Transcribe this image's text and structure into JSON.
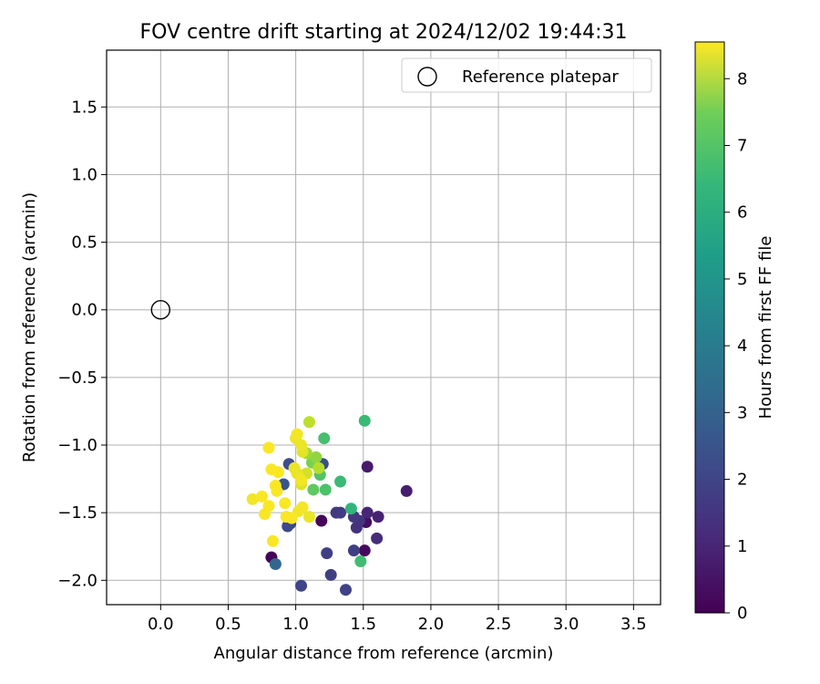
{
  "chart_data": {
    "type": "scatter",
    "title": "FOV centre drift starting at 2024/12/02 19:44:31",
    "xlabel": "Angular distance from reference (arcmin)",
    "ylabel": "Rotation from reference (arcmin)",
    "xlim": [
      -0.4,
      3.7
    ],
    "ylim": [
      -2.18,
      1.92
    ],
    "xticks": [
      0.0,
      0.5,
      1.0,
      1.5,
      2.0,
      2.5,
      3.0,
      3.5
    ],
    "xtick_labels": [
      "0.0",
      "0.5",
      "1.0",
      "1.5",
      "2.0",
      "2.5",
      "3.0",
      "3.5"
    ],
    "yticks": [
      1.5,
      1.0,
      0.5,
      0.0,
      -0.5,
      -1.0,
      -1.5,
      -2.0
    ],
    "ytick_labels": [
      "1.5",
      "1.0",
      "0.5",
      "0.0",
      "−0.5",
      "−1.0",
      "−1.5",
      "−2.0"
    ],
    "grid": true,
    "legend": {
      "placement": "top-right",
      "entries": [
        "Reference platepar"
      ]
    },
    "reference_point": {
      "x": 0.0,
      "y": 0.0
    },
    "colorbar": {
      "label": "Hours from first FF file",
      "min": 0,
      "max": 8.55,
      "colormap": "viridis",
      "ticks": [
        0,
        1,
        2,
        3,
        4,
        5,
        6,
        7,
        8
      ],
      "tick_labels": [
        "0",
        "1",
        "2",
        "3",
        "4",
        "5",
        "6",
        "7",
        "8"
      ]
    },
    "series": [
      {
        "points": [
          {
            "x": 0.82,
            "y": -1.83,
            "h": 0.1
          },
          {
            "x": 1.19,
            "y": -1.56,
            "h": 0.1
          },
          {
            "x": 1.51,
            "y": -1.78,
            "h": 0.2
          },
          {
            "x": 1.52,
            "y": -1.57,
            "h": 0.3
          },
          {
            "x": 1.53,
            "y": -1.16,
            "h": 0.6
          },
          {
            "x": 1.82,
            "y": -1.34,
            "h": 0.7
          },
          {
            "x": 1.61,
            "y": -1.53,
            "h": 0.8
          },
          {
            "x": 1.53,
            "y": -1.5,
            "h": 0.9
          },
          {
            "x": 1.6,
            "y": -1.69,
            "h": 1.1
          },
          {
            "x": 1.45,
            "y": -1.61,
            "h": 1.2
          },
          {
            "x": 1.47,
            "y": -1.56,
            "h": 1.3
          },
          {
            "x": 1.43,
            "y": -1.53,
            "h": 1.4
          },
          {
            "x": 1.3,
            "y": -1.5,
            "h": 1.4
          },
          {
            "x": 1.33,
            "y": -1.5,
            "h": 1.5
          },
          {
            "x": 1.43,
            "y": -1.78,
            "h": 1.6
          },
          {
            "x": 1.23,
            "y": -1.8,
            "h": 1.6
          },
          {
            "x": 1.26,
            "y": -1.96,
            "h": 1.6
          },
          {
            "x": 1.37,
            "y": -2.07,
            "h": 1.7
          },
          {
            "x": 1.04,
            "y": -2.04,
            "h": 1.8
          },
          {
            "x": 0.96,
            "y": -1.58,
            "h": 1.8
          },
          {
            "x": 0.94,
            "y": -1.6,
            "h": 1.9
          },
          {
            "x": 0.95,
            "y": -1.14,
            "h": 2.0
          },
          {
            "x": 1.2,
            "y": -1.14,
            "h": 2.1
          },
          {
            "x": 0.91,
            "y": -1.29,
            "h": 2.3
          },
          {
            "x": 0.85,
            "y": -1.88,
            "h": 2.8
          },
          {
            "x": 1.41,
            "y": -1.47,
            "h": 5.6
          },
          {
            "x": 1.33,
            "y": -1.27,
            "h": 5.8
          },
          {
            "x": 1.51,
            "y": -0.82,
            "h": 5.8
          },
          {
            "x": 1.48,
            "y": -1.86,
            "h": 5.9
          },
          {
            "x": 1.21,
            "y": -0.95,
            "h": 6.0
          },
          {
            "x": 1.22,
            "y": -1.33,
            "h": 6.1
          },
          {
            "x": 1.18,
            "y": -1.22,
            "h": 6.2
          },
          {
            "x": 1.13,
            "y": -1.33,
            "h": 6.4
          },
          {
            "x": 1.12,
            "y": -1.13,
            "h": 6.8
          },
          {
            "x": 1.15,
            "y": -1.09,
            "h": 7.1
          },
          {
            "x": 1.08,
            "y": -1.06,
            "h": 7.3
          },
          {
            "x": 1.1,
            "y": -0.83,
            "h": 7.7
          },
          {
            "x": 1.17,
            "y": -1.17,
            "h": 7.6
          },
          {
            "x": 1.08,
            "y": -1.21,
            "h": 8.0
          },
          {
            "x": 1.04,
            "y": -1.29,
            "h": 8.1
          },
          {
            "x": 0.82,
            "y": -1.18,
            "h": 8.5
          },
          {
            "x": 0.87,
            "y": -1.2,
            "h": 8.5
          },
          {
            "x": 0.8,
            "y": -1.02,
            "h": 8.5
          },
          {
            "x": 1.01,
            "y": -0.92,
            "h": 8.4
          },
          {
            "x": 1.0,
            "y": -0.95,
            "h": 8.3
          },
          {
            "x": 1.04,
            "y": -1.0,
            "h": 8.3
          },
          {
            "x": 1.05,
            "y": -1.05,
            "h": 8.2
          },
          {
            "x": 0.99,
            "y": -1.17,
            "h": 8.3
          },
          {
            "x": 1.01,
            "y": -1.21,
            "h": 8.3
          },
          {
            "x": 1.04,
            "y": -1.26,
            "h": 8.4
          },
          {
            "x": 0.85,
            "y": -1.3,
            "h": 8.5
          },
          {
            "x": 0.86,
            "y": -1.34,
            "h": 8.5
          },
          {
            "x": 0.68,
            "y": -1.4,
            "h": 8.4
          },
          {
            "x": 0.75,
            "y": -1.38,
            "h": 8.5
          },
          {
            "x": 0.8,
            "y": -1.45,
            "h": 8.5
          },
          {
            "x": 0.92,
            "y": -1.43,
            "h": 8.5
          },
          {
            "x": 0.77,
            "y": -1.51,
            "h": 8.5
          },
          {
            "x": 0.93,
            "y": -1.53,
            "h": 8.5
          },
          {
            "x": 0.97,
            "y": -1.54,
            "h": 8.5
          },
          {
            "x": 1.02,
            "y": -1.49,
            "h": 8.4
          },
          {
            "x": 1.05,
            "y": -1.46,
            "h": 8.4
          },
          {
            "x": 1.1,
            "y": -1.53,
            "h": 8.3
          },
          {
            "x": 0.83,
            "y": -1.71,
            "h": 8.5
          }
        ]
      }
    ]
  }
}
